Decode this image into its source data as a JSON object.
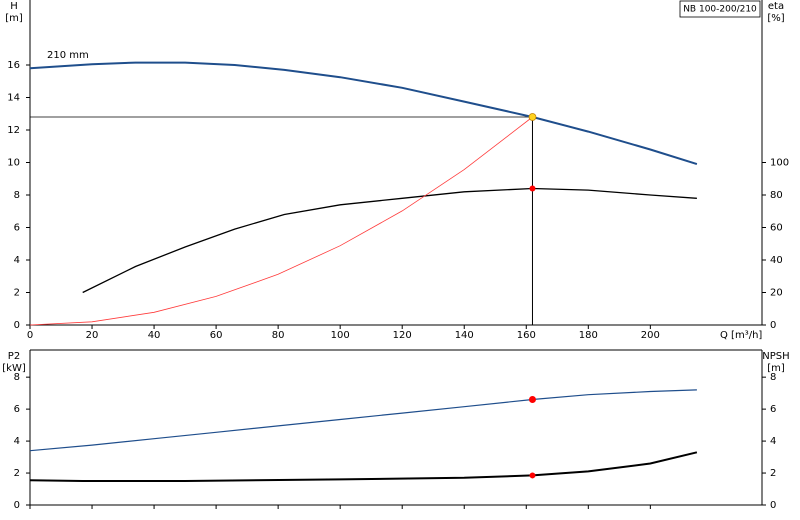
{
  "chart_data": [
    {
      "type": "line",
      "title": "NB 100-200/210",
      "annotation": "210 mm",
      "x_label": "Q [m³/h]",
      "y_label": "H",
      "y_unit": "[m]",
      "y2_label": "eta",
      "y2_unit": "[%]",
      "xlim": [
        0,
        236
      ],
      "xticks": [
        0,
        20,
        40,
        60,
        80,
        100,
        120,
        140,
        160,
        180,
        200
      ],
      "ylim": [
        0,
        20
      ],
      "yticks": [
        0,
        2,
        4,
        6,
        8,
        10,
        12,
        14,
        16
      ],
      "y2lim": [
        0,
        200
      ],
      "y2ticks": [
        0,
        20,
        40,
        60,
        80,
        100
      ],
      "series": [
        {
          "color": "#1f4e8c",
          "width": 2,
          "axis": "y",
          "x": [
            0,
            20,
            34,
            50,
            66,
            82,
            100,
            120,
            140,
            162,
            180,
            200,
            215
          ],
          "values": [
            15.8,
            16.05,
            16.15,
            16.15,
            16.0,
            15.7,
            15.25,
            14.6,
            13.75,
            12.8,
            11.9,
            10.8,
            9.9
          ]
        },
        {
          "color": "#000000",
          "width": 1.3,
          "axis": "y2",
          "x": [
            17,
            34,
            50,
            66,
            82,
            100,
            120,
            140,
            162,
            180,
            200,
            215
          ],
          "values": [
            20,
            36,
            48,
            59,
            68,
            74,
            78,
            82,
            84,
            83,
            80,
            78
          ]
        },
        {
          "color": "#ff3b3b",
          "width": 0.8,
          "axis": "y",
          "x": [
            0,
            20,
            40,
            60,
            80,
            100,
            120,
            140,
            162
          ],
          "values": [
            0,
            0.2,
            0.78,
            1.76,
            3.12,
            4.88,
            7.02,
            9.56,
            12.8
          ]
        }
      ],
      "duty_point": {
        "x": 162,
        "y": 12.8,
        "y2": 84,
        "color": "#ffd21f",
        "y2_color": "#ff0000"
      }
    },
    {
      "type": "line",
      "y_label": "P2",
      "y_unit": "[kW]",
      "y2_label": "NPSH",
      "y2_unit": "[m]",
      "xlim": [
        0,
        236
      ],
      "xticks": [
        0,
        20,
        40,
        60,
        80,
        100,
        120,
        140,
        160,
        180,
        200
      ],
      "ylim": [
        0,
        9.7
      ],
      "yticks": [
        0,
        2,
        4,
        6,
        8
      ],
      "y2lim": [
        0,
        9.7
      ],
      "y2ticks": [
        0,
        2,
        4,
        6,
        8
      ],
      "series": [
        {
          "color": "#1f4e8c",
          "width": 1.2,
          "axis": "y",
          "x": [
            0,
            20,
            40,
            60,
            80,
            100,
            120,
            140,
            162,
            180,
            200,
            215
          ],
          "values": [
            3.4,
            3.75,
            4.15,
            4.55,
            4.95,
            5.35,
            5.75,
            6.15,
            6.6,
            6.9,
            7.1,
            7.2
          ]
        },
        {
          "color": "#000000",
          "width": 2,
          "axis": "y2",
          "x": [
            0,
            17,
            50,
            100,
            140,
            162,
            180,
            200,
            215
          ],
          "values": [
            1.55,
            1.5,
            1.5,
            1.6,
            1.7,
            1.85,
            2.1,
            2.6,
            3.3
          ]
        }
      ],
      "duty_point": {
        "x": 162,
        "y": 6.6,
        "y2": 1.85,
        "color": "#ff0000",
        "y2_color": "#ff0000"
      }
    }
  ]
}
